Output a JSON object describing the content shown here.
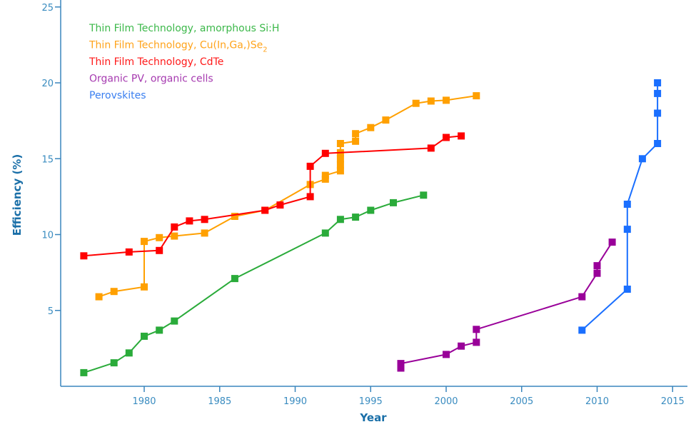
{
  "chart_data": {
    "type": "line",
    "title": "",
    "xlabel": "Year",
    "ylabel": "Efficiency (%)",
    "xlim": [
      1974.5,
      2016
    ],
    "ylim": [
      0,
      25
    ],
    "x_ticks": [
      1980,
      1985,
      1990,
      1995,
      2000,
      2005,
      2010,
      2015
    ],
    "y_ticks": [
      5,
      10,
      15,
      20,
      25
    ],
    "x_tick_labels": [
      "1980",
      "1985",
      "1990",
      "1995",
      "2000",
      "2005",
      "2010",
      "2015"
    ],
    "y_tick_labels": [
      "5",
      "10",
      "15",
      "20",
      "25"
    ],
    "grid": false,
    "legend_position": "top-left",
    "marker": "square",
    "series": [
      {
        "name": "Thin Film Technology, amorphous Si:H",
        "legend_main": "Thin Film Technology, amorphous Si:H",
        "legend_sub": "",
        "color": "#2aab3a",
        "legend_color": "#3cb84a",
        "x": [
          1976,
          1978,
          1979,
          1980,
          1981,
          1982,
          1986,
          1992,
          1993,
          1994,
          1995,
          1996.5,
          1998.5
        ],
        "y": [
          0.9,
          1.55,
          2.2,
          3.3,
          3.7,
          4.3,
          7.1,
          10.1,
          11.0,
          11.15,
          11.6,
          12.1,
          12.6
        ]
      },
      {
        "name": "Thin Film Technology, Cu(In,Ga,)Se2",
        "legend_main": "Thin Film Technology, Cu(In,Ga,)Se",
        "legend_sub": "2",
        "color": "#ffa000",
        "legend_color": "#ffa31a",
        "x": [
          1977,
          1978,
          1980,
          1980,
          1981,
          1982,
          1984,
          1986,
          1988,
          1991,
          1992,
          1992,
          1993,
          1993,
          1993,
          1993,
          1993,
          1994,
          1994,
          1995,
          1996,
          1998,
          1999,
          2000,
          2002
        ],
        "y": [
          5.9,
          6.25,
          6.55,
          9.55,
          9.8,
          9.9,
          10.1,
          11.2,
          11.6,
          13.3,
          13.65,
          13.9,
          14.2,
          14.6,
          15.0,
          15.4,
          16.0,
          16.15,
          16.65,
          17.05,
          17.55,
          18.65,
          18.8,
          18.85,
          19.15
        ]
      },
      {
        "name": "Thin Film Technology, CdTe",
        "legend_main": "Thin Film Technology, CdTe",
        "legend_sub": "",
        "color": "#ff0000",
        "legend_color": "#ff1a1a",
        "x": [
          1976,
          1979,
          1981,
          1982,
          1983,
          1984,
          1988,
          1989,
          1991,
          1991,
          1992,
          1999,
          2000,
          2001
        ],
        "y": [
          8.6,
          8.85,
          8.95,
          10.5,
          10.9,
          11.0,
          11.6,
          11.95,
          12.5,
          14.5,
          15.35,
          15.7,
          16.4,
          16.5
        ]
      },
      {
        "name": "Organic PV, organic cells",
        "legend_main": "Organic PV, organic cells",
        "legend_sub": "",
        "color": "#990099",
        "legend_color": "#a63ab0",
        "segments": [
          {
            "x": [
              1997,
              1997,
              2000,
              2001,
              2002,
              2002,
              2009,
              2010,
              2010,
              2011
            ],
            "y": [
              1.2,
              1.5,
              2.1,
              2.65,
              2.9,
              3.75,
              5.9,
              7.45,
              7.95,
              9.5
            ]
          }
        ],
        "x": [
          1997,
          1997,
          2000,
          2001,
          2002,
          2002,
          2009,
          2010,
          2010,
          2011
        ],
        "y": [
          1.2,
          1.5,
          2.1,
          2.65,
          2.9,
          3.75,
          5.9,
          7.45,
          7.95,
          9.5
        ]
      },
      {
        "name": "Perovskites",
        "legend_main": "Perovskites",
        "legend_sub": "",
        "color": "#1a6fff",
        "legend_color": "#3a7ff0",
        "x": [
          2009,
          2012,
          2012,
          2012,
          2013,
          2014,
          2014,
          2014,
          2014
        ],
        "y": [
          3.7,
          6.4,
          10.35,
          12.0,
          15.0,
          16.0,
          18.0,
          19.3,
          20.0
        ]
      }
    ]
  }
}
